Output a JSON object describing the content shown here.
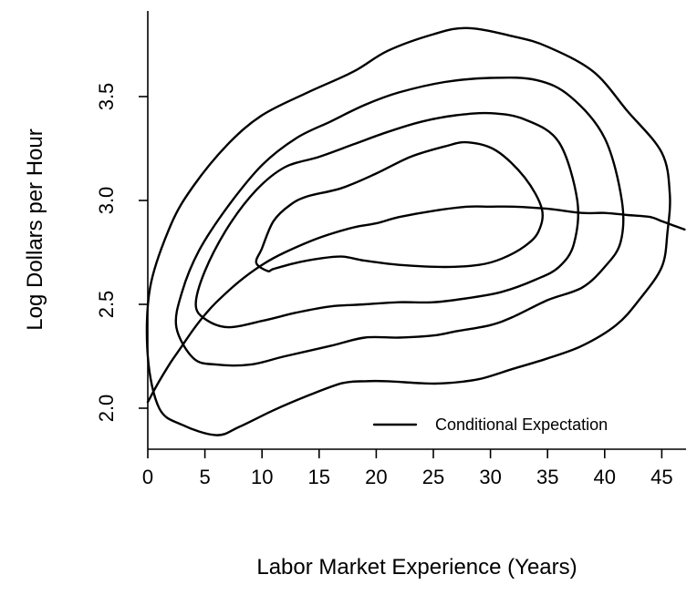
{
  "chart_data": {
    "type": "line",
    "title": "",
    "xlabel": "Labor Market Experience (Years)",
    "ylabel": "Log Dollars per Hour",
    "xlim": [
      0,
      47
    ],
    "ylim": [
      1.8,
      3.85
    ],
    "xticks": [
      "0",
      "5",
      "10",
      "15",
      "20",
      "25",
      "30",
      "35",
      "40",
      "45"
    ],
    "yticks": [
      "2.0",
      "2.5",
      "3.0",
      "3.5"
    ],
    "legend": {
      "position": "bottom-right",
      "entries": [
        "Conditional Expectation"
      ]
    },
    "grid": false,
    "series": [
      {
        "name": "Conditional Expectation",
        "x": [
          0,
          1,
          2,
          3,
          4,
          5,
          6,
          8,
          10,
          12,
          15,
          18,
          20,
          22,
          25,
          28,
          30,
          32,
          35,
          38,
          40,
          42,
          44,
          45,
          46,
          47
        ],
        "y": [
          2.03,
          2.13,
          2.22,
          2.3,
          2.38,
          2.45,
          2.51,
          2.61,
          2.69,
          2.75,
          2.82,
          2.87,
          2.89,
          2.92,
          2.95,
          2.97,
          2.97,
          2.97,
          2.96,
          2.94,
          2.94,
          2.93,
          2.92,
          2.9,
          2.88,
          2.86
        ]
      }
    ],
    "contours": [
      {
        "level": "outer",
        "x": [
          6,
          3,
          1,
          0,
          0.2,
          2,
          4,
          7,
          10,
          14,
          18,
          21,
          25,
          28,
          32,
          35,
          39,
          42,
          45,
          45.7,
          45.5,
          45,
          43,
          41,
          38,
          35,
          32,
          29,
          26,
          24,
          21,
          19,
          17,
          14,
          11,
          8,
          6
        ],
        "y": [
          1.87,
          1.92,
          2.0,
          2.25,
          2.58,
          2.88,
          3.07,
          3.27,
          3.41,
          3.52,
          3.62,
          3.72,
          3.8,
          3.83,
          3.79,
          3.74,
          3.62,
          3.43,
          3.23,
          3.03,
          2.85,
          2.68,
          2.52,
          2.4,
          2.3,
          2.24,
          2.19,
          2.14,
          2.12,
          2.12,
          2.13,
          2.13,
          2.12,
          2.06,
          1.99,
          1.91,
          1.87
        ]
      },
      {
        "level": "second",
        "x": [
          6,
          4,
          2.5,
          3,
          4.5,
          7,
          10,
          13,
          16,
          19,
          22,
          26,
          30,
          34,
          37,
          40,
          41.5,
          41.4,
          40,
          38,
          35,
          32,
          30,
          27,
          25,
          22,
          19,
          16,
          12,
          9,
          6
        ],
        "y": [
          2.21,
          2.24,
          2.39,
          2.56,
          2.76,
          2.97,
          3.17,
          3.3,
          3.38,
          3.46,
          3.52,
          3.57,
          3.59,
          3.58,
          3.5,
          3.3,
          3.0,
          2.8,
          2.68,
          2.58,
          2.52,
          2.44,
          2.4,
          2.37,
          2.35,
          2.34,
          2.34,
          2.3,
          2.25,
          2.21,
          2.21
        ]
      },
      {
        "level": "third",
        "x": [
          5,
          4.2,
          5,
          7,
          9.5,
          12,
          15,
          18,
          21,
          24,
          27,
          30,
          33,
          36,
          37.6,
          37.3,
          36,
          34,
          31,
          28,
          25,
          22,
          19,
          16,
          13,
          10,
          7,
          5
        ],
        "y": [
          2.43,
          2.5,
          2.66,
          2.87,
          3.05,
          3.16,
          3.21,
          3.27,
          3.33,
          3.38,
          3.41,
          3.42,
          3.39,
          3.28,
          3.0,
          2.79,
          2.68,
          2.62,
          2.56,
          2.53,
          2.51,
          2.51,
          2.5,
          2.49,
          2.46,
          2.42,
          2.39,
          2.43
        ]
      },
      {
        "level": "inner",
        "x": [
          9.5,
          10,
          11,
          12.5,
          14,
          17,
          20,
          23,
          26,
          28,
          30.5,
          33,
          34.5,
          34.2,
          33,
          31,
          29,
          26,
          22,
          19,
          17,
          15,
          13,
          11,
          10.5,
          9.5
        ],
        "y": [
          2.7,
          2.77,
          2.9,
          2.98,
          3.02,
          3.06,
          3.13,
          3.21,
          3.26,
          3.28,
          3.24,
          3.11,
          2.96,
          2.85,
          2.78,
          2.72,
          2.69,
          2.68,
          2.69,
          2.71,
          2.73,
          2.72,
          2.7,
          2.67,
          2.66,
          2.7
        ]
      }
    ]
  }
}
